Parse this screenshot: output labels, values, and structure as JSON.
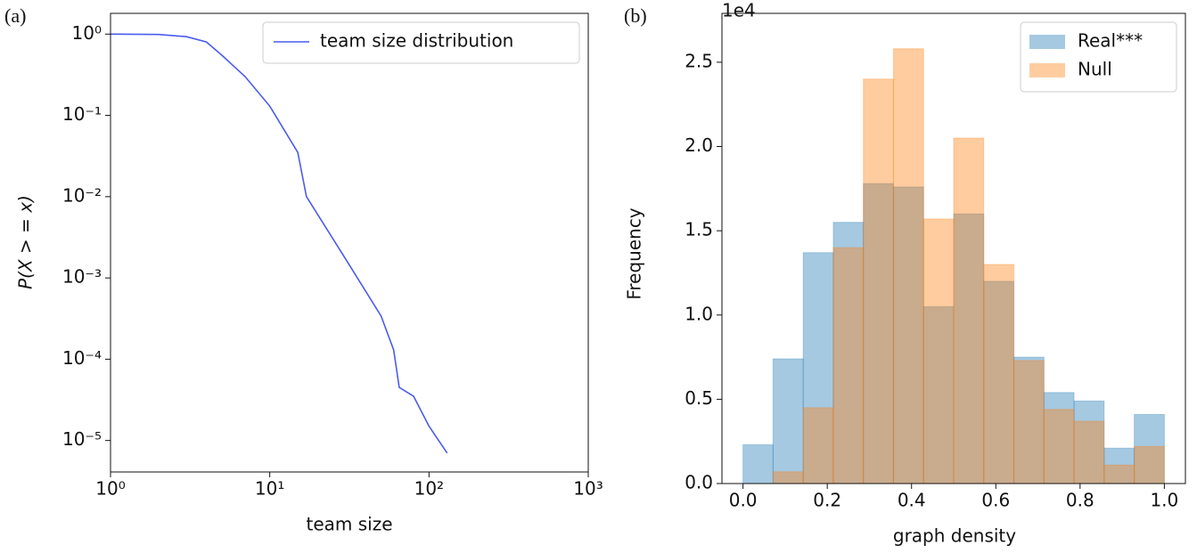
{
  "chart_data": [
    {
      "type": "line",
      "panel_label": "(a)",
      "xlabel": "team size",
      "ylabel": "P(X > = x)",
      "xscale": "log",
      "yscale": "log",
      "xlim": [
        1,
        1000
      ],
      "ylim": [
        4.1e-06,
        1.8
      ],
      "xticks": [
        {
          "value": 1,
          "label": "10⁰"
        },
        {
          "value": 10,
          "label": "10¹"
        },
        {
          "value": 100,
          "label": "10²"
        },
        {
          "value": 1000,
          "label": "10³"
        }
      ],
      "yticks": [
        {
          "value": 1e-05,
          "label": "10⁻⁵"
        },
        {
          "value": 0.0001,
          "label": "10⁻⁴"
        },
        {
          "value": 0.001,
          "label": "10⁻³"
        },
        {
          "value": 0.01,
          "label": "10⁻²"
        },
        {
          "value": 0.1,
          "label": "10⁻¹"
        },
        {
          "value": 1,
          "label": "10⁰"
        }
      ],
      "legend": "upper right",
      "x": [
        1,
        2,
        3,
        4,
        5,
        7,
        10,
        15,
        17,
        30,
        50,
        60,
        65,
        80,
        100,
        130
      ],
      "series": [
        {
          "name": "team size distribution",
          "color": "#4a5ced",
          "values": [
            1,
            0.99,
            0.93,
            0.8,
            0.55,
            0.3,
            0.13,
            0.035,
            0.01,
            0.0017,
            0.00034,
            0.00013,
            4.5e-05,
            3.5e-05,
            1.5e-05,
            7e-06
          ]
        }
      ]
    },
    {
      "type": "histogram",
      "panel_label": "(b)",
      "xlabel": "graph density",
      "ylabel": "Frequency",
      "y_offset_text": "1e4",
      "xlim": [
        -0.05,
        1.05
      ],
      "ylim": [
        0,
        27900
      ],
      "xticks": [
        {
          "value": 0,
          "label": "0.0"
        },
        0.2,
        0.4,
        0.6,
        0.8,
        {
          "value": 1,
          "label": "1.0"
        }
      ],
      "yticks": [
        {
          "value": 0,
          "label": "0.0"
        },
        {
          "value": 5000,
          "label": "0.5"
        },
        {
          "value": 10000,
          "label": "1.0"
        },
        {
          "value": 15000,
          "label": "1.5"
        },
        {
          "value": 20000,
          "label": "2.0"
        },
        {
          "value": 25000,
          "label": "2.5"
        }
      ],
      "legend": "upper right",
      "bins": [
        0,
        0.0714,
        0.1429,
        0.2143,
        0.2857,
        0.3571,
        0.4286,
        0.5,
        0.5714,
        0.6429,
        0.7143,
        0.7857,
        0.8571,
        0.9286,
        1
      ],
      "series": [
        {
          "name": "Real***",
          "color": "#1f77b4",
          "values": [
            2300,
            7400,
            13700,
            15500,
            17800,
            17600,
            10500,
            16000,
            12000,
            7500,
            5400,
            4900,
            2100,
            4100
          ]
        },
        {
          "name": "Null",
          "color": "#ff7f0e",
          "values": [
            0,
            700,
            4500,
            14000,
            24000,
            25800,
            15700,
            20500,
            13000,
            7300,
            4400,
            3700,
            1100,
            2200
          ]
        }
      ]
    }
  ]
}
